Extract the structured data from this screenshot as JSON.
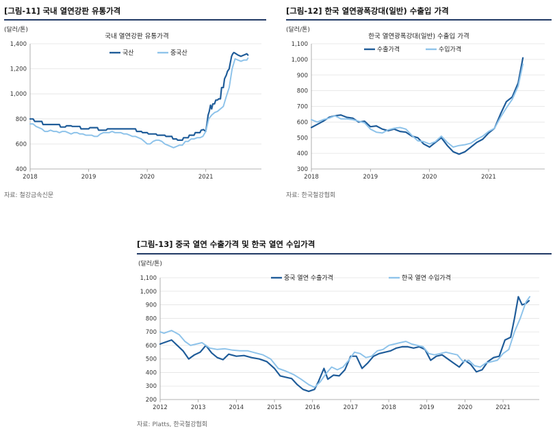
{
  "colors": {
    "dark": "#1f5c99",
    "light": "#8ec3ea",
    "rule": "#1f3864"
  },
  "figures": [
    {
      "title": "[그림-11] 국내 열연강판 유통가격",
      "source": "자료: 철강금속신문"
    },
    {
      "title": "[그림-12] 한국 열연광폭강대(일반) 수출입 가격",
      "source": "자료: 한국철강협회"
    },
    {
      "title": "[그림-13] 중국 열연 수출가격 및 한국 열연 수입가격",
      "source": "자료: Platts, 한국철강협회"
    }
  ],
  "chart_data": [
    {
      "type": "line",
      "title": "국내 열연강판 유통가격",
      "unit": "(달러/톤)",
      "xlim": [
        2018.0,
        2021.95
      ],
      "xticks": [
        "2018",
        "2019",
        "2020",
        "2021"
      ],
      "ylim": [
        400,
        1400
      ],
      "yticks": [
        "400",
        "600",
        "800",
        "1,000",
        "1,200",
        "1,400"
      ],
      "legend_position": "top",
      "series": [
        {
          "name": "국산",
          "color": "#1f5c99",
          "x": [
            2018.0,
            2018.05,
            2018.08,
            2018.2,
            2018.22,
            2018.5,
            2018.52,
            2018.6,
            2018.62,
            2018.7,
            2018.72,
            2018.85,
            2018.87,
            2019.0,
            2019.02,
            2019.15,
            2019.17,
            2019.3,
            2019.32,
            2019.45,
            2019.47,
            2019.8,
            2019.82,
            2019.9,
            2019.92,
            2020.0,
            2020.02,
            2020.15,
            2020.17,
            2020.3,
            2020.32,
            2020.42,
            2020.44,
            2020.5,
            2020.52,
            2020.6,
            2020.62,
            2020.7,
            2020.72,
            2020.8,
            2020.82,
            2020.9,
            2020.92,
            2020.96,
            2021.0,
            2021.02,
            2021.04,
            2021.06,
            2021.08,
            2021.1,
            2021.12,
            2021.15,
            2021.17,
            2021.2,
            2021.22,
            2021.25,
            2021.27,
            2021.3,
            2021.32,
            2021.35,
            2021.37,
            2021.4,
            2021.42,
            2021.44,
            2021.46,
            2021.48,
            2021.5,
            2021.55,
            2021.6,
            2021.65,
            2021.7,
            2021.72
          ],
          "y": [
            800,
            800,
            780,
            780,
            755,
            755,
            735,
            735,
            745,
            745,
            740,
            740,
            720,
            720,
            730,
            730,
            710,
            710,
            720,
            720,
            720,
            720,
            700,
            700,
            690,
            690,
            680,
            680,
            670,
            670,
            660,
            660,
            640,
            640,
            630,
            630,
            650,
            650,
            670,
            670,
            690,
            690,
            710,
            715,
            700,
            760,
            830,
            860,
            910,
            880,
            920,
            920,
            950,
            950,
            960,
            960,
            1050,
            1050,
            1120,
            1150,
            1180,
            1200,
            1250,
            1300,
            1320,
            1330,
            1325,
            1310,
            1300,
            1310,
            1320,
            1310
          ]
        },
        {
          "name": "중국산",
          "color": "#8ec3ea",
          "x": [
            2018.0,
            2018.05,
            2018.1,
            2018.15,
            2018.2,
            2018.25,
            2018.3,
            2018.35,
            2018.4,
            2018.45,
            2018.5,
            2018.55,
            2018.6,
            2018.65,
            2018.7,
            2018.75,
            2018.8,
            2018.85,
            2018.9,
            2018.95,
            2019.0,
            2019.05,
            2019.1,
            2019.15,
            2019.2,
            2019.25,
            2019.3,
            2019.35,
            2019.4,
            2019.45,
            2019.5,
            2019.55,
            2019.6,
            2019.65,
            2019.7,
            2019.75,
            2019.8,
            2019.85,
            2019.9,
            2019.95,
            2020.0,
            2020.05,
            2020.1,
            2020.15,
            2020.2,
            2020.25,
            2020.3,
            2020.35,
            2020.4,
            2020.45,
            2020.5,
            2020.55,
            2020.6,
            2020.65,
            2020.7,
            2020.75,
            2020.8,
            2020.85,
            2020.9,
            2020.95,
            2021.0,
            2021.05,
            2021.1,
            2021.15,
            2021.2,
            2021.25,
            2021.3,
            2021.35,
            2021.4,
            2021.45,
            2021.5,
            2021.55,
            2021.6,
            2021.65,
            2021.7,
            2021.72
          ],
          "y": [
            760,
            760,
            740,
            730,
            720,
            700,
            700,
            710,
            700,
            700,
            690,
            700,
            700,
            690,
            680,
            690,
            690,
            680,
            680,
            670,
            670,
            670,
            660,
            660,
            680,
            690,
            690,
            690,
            700,
            690,
            690,
            690,
            680,
            680,
            670,
            660,
            660,
            650,
            640,
            620,
            600,
            600,
            620,
            630,
            630,
            620,
            600,
            590,
            580,
            570,
            580,
            590,
            590,
            620,
            620,
            640,
            640,
            650,
            650,
            660,
            700,
            800,
            830,
            850,
            860,
            880,
            900,
            980,
            1050,
            1200,
            1280,
            1270,
            1260,
            1270,
            1270,
            1285
          ]
        }
      ]
    },
    {
      "type": "line",
      "title": "한국 열연광폭강대(일반) 수출입 가격",
      "unit": "(달러/톤)",
      "xlim": [
        2018.0,
        2021.95
      ],
      "xticks": [
        "2018",
        "2019",
        "2020",
        "2021"
      ],
      "ylim": [
        300,
        1100
      ],
      "yticks": [
        "300",
        "400",
        "500",
        "600",
        "700",
        "800",
        "900",
        "1,000",
        "1,100"
      ],
      "legend_position": "top-left",
      "series": [
        {
          "name": "수출가격",
          "color": "#1f5c99",
          "x": [
            2018.0,
            2018.1,
            2018.2,
            2018.3,
            2018.4,
            2018.5,
            2018.6,
            2018.7,
            2018.8,
            2018.9,
            2019.0,
            2019.1,
            2019.2,
            2019.3,
            2019.4,
            2019.5,
            2019.6,
            2019.7,
            2019.8,
            2019.9,
            2020.0,
            2020.1,
            2020.2,
            2020.3,
            2020.4,
            2020.5,
            2020.6,
            2020.7,
            2020.8,
            2020.9,
            2021.0,
            2021.1,
            2021.2,
            2021.3,
            2021.4,
            2021.5,
            2021.58
          ],
          "y": [
            565,
            585,
            605,
            630,
            640,
            645,
            630,
            625,
            600,
            605,
            570,
            575,
            555,
            545,
            555,
            540,
            535,
            510,
            500,
            460,
            440,
            470,
            500,
            450,
            410,
            395,
            410,
            440,
            470,
            490,
            530,
            560,
            650,
            730,
            760,
            850,
            1010
          ]
        },
        {
          "name": "수입가격",
          "color": "#8ec3ea",
          "x": [
            2018.0,
            2018.1,
            2018.2,
            2018.3,
            2018.4,
            2018.5,
            2018.6,
            2018.7,
            2018.8,
            2018.9,
            2019.0,
            2019.1,
            2019.2,
            2019.3,
            2019.4,
            2019.5,
            2019.6,
            2019.7,
            2019.8,
            2019.9,
            2020.0,
            2020.1,
            2020.2,
            2020.3,
            2020.4,
            2020.5,
            2020.6,
            2020.7,
            2020.8,
            2020.9,
            2021.0,
            2021.1,
            2021.2,
            2021.3,
            2021.4,
            2021.5,
            2021.58
          ],
          "y": [
            615,
            600,
            615,
            625,
            640,
            620,
            620,
            615,
            605,
            595,
            555,
            535,
            530,
            550,
            560,
            565,
            555,
            515,
            480,
            475,
            460,
            475,
            510,
            470,
            440,
            450,
            455,
            465,
            490,
            510,
            540,
            560,
            630,
            690,
            745,
            830,
            970
          ]
        }
      ]
    },
    {
      "type": "line",
      "title": "",
      "unit": "(달러/톤)",
      "xlim": [
        2012.0,
        2021.95
      ],
      "xticks": [
        "2012",
        "2013",
        "2014",
        "2015",
        "2016",
        "2017",
        "2018",
        "2019",
        "2020",
        "2021"
      ],
      "ylim": [
        200,
        1100
      ],
      "yticks": [
        "200",
        "300",
        "400",
        "500",
        "600",
        "700",
        "800",
        "900",
        "1,000",
        "1,100"
      ],
      "legend_position": "top",
      "series": [
        {
          "name": "중국 열연 수출가격",
          "color": "#1f5c99",
          "x": [
            2012.0,
            2012.15,
            2012.3,
            2012.45,
            2012.6,
            2012.75,
            2012.9,
            2013.05,
            2013.2,
            2013.35,
            2013.5,
            2013.65,
            2013.8,
            2014.0,
            2014.2,
            2014.4,
            2014.6,
            2014.8,
            2015.0,
            2015.15,
            2015.3,
            2015.45,
            2015.6,
            2015.75,
            2015.9,
            2016.05,
            2016.15,
            2016.3,
            2016.4,
            2016.55,
            2016.7,
            2016.85,
            2017.0,
            2017.15,
            2017.3,
            2017.45,
            2017.6,
            2017.75,
            2017.9,
            2018.05,
            2018.2,
            2018.35,
            2018.5,
            2018.65,
            2018.8,
            2018.95,
            2019.1,
            2019.25,
            2019.4,
            2019.55,
            2019.7,
            2019.85,
            2020.0,
            2020.15,
            2020.3,
            2020.45,
            2020.6,
            2020.75,
            2020.9,
            2021.05,
            2021.2,
            2021.3,
            2021.4,
            2021.5,
            2021.6,
            2021.68
          ],
          "y": [
            610,
            625,
            640,
            600,
            560,
            500,
            530,
            550,
            600,
            545,
            510,
            495,
            535,
            520,
            525,
            510,
            500,
            480,
            430,
            375,
            365,
            355,
            310,
            275,
            260,
            275,
            330,
            430,
            350,
            380,
            375,
            420,
            520,
            520,
            430,
            470,
            520,
            540,
            550,
            560,
            580,
            590,
            590,
            580,
            590,
            570,
            490,
            520,
            530,
            500,
            470,
            440,
            490,
            460,
            405,
            420,
            480,
            510,
            520,
            640,
            660,
            800,
            960,
            900,
            910,
            930
          ]
        },
        {
          "name": "한국 열연 수입가격",
          "color": "#8ec3ea",
          "x": [
            2012.0,
            2012.1,
            2012.3,
            2012.5,
            2012.65,
            2012.8,
            2012.95,
            2013.1,
            2013.3,
            2013.5,
            2013.7,
            2013.9,
            2014.1,
            2014.3,
            2014.5,
            2014.7,
            2014.9,
            2015.1,
            2015.3,
            2015.5,
            2015.7,
            2015.9,
            2016.05,
            2016.2,
            2016.35,
            2016.5,
            2016.65,
            2016.8,
            2016.95,
            2017.1,
            2017.25,
            2017.4,
            2017.55,
            2017.7,
            2017.85,
            2018.0,
            2018.15,
            2018.3,
            2018.45,
            2018.6,
            2018.75,
            2018.9,
            2019.05,
            2019.2,
            2019.35,
            2019.5,
            2019.65,
            2019.8,
            2019.95,
            2020.1,
            2020.25,
            2020.4,
            2020.55,
            2020.7,
            2020.85,
            2021.0,
            2021.15,
            2021.3,
            2021.45,
            2021.6,
            2021.7
          ],
          "y": [
            700,
            690,
            710,
            680,
            630,
            600,
            610,
            620,
            580,
            570,
            575,
            565,
            560,
            560,
            545,
            530,
            500,
            430,
            410,
            385,
            350,
            310,
            290,
            330,
            390,
            440,
            420,
            440,
            490,
            550,
            540,
            510,
            520,
            560,
            570,
            600,
            610,
            620,
            630,
            610,
            600,
            590,
            540,
            530,
            540,
            550,
            540,
            530,
            480,
            490,
            450,
            440,
            470,
            480,
            490,
            540,
            570,
            700,
            800,
            920,
            960
          ]
        }
      ]
    }
  ]
}
